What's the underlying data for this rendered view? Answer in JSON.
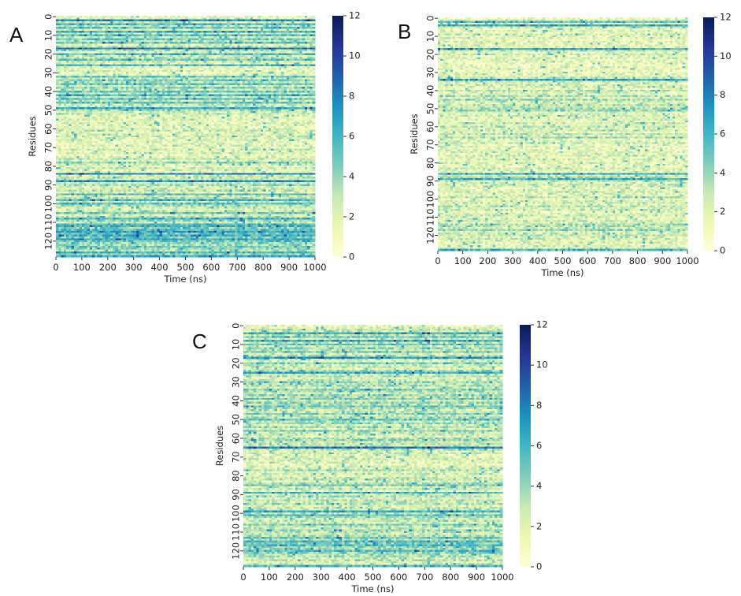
{
  "chart_data": [
    {
      "type": "heatmap",
      "panel_label": "A",
      "xlabel": "Time (ns)",
      "ylabel": "Residues",
      "x_ticks": [
        0,
        100,
        200,
        300,
        400,
        500,
        600,
        700,
        800,
        900,
        1000
      ],
      "y_ticks": [
        0,
        10,
        20,
        30,
        40,
        50,
        60,
        70,
        80,
        90,
        100,
        110,
        120
      ],
      "xlim": [
        0,
        1000
      ],
      "ylim": [
        0,
        129
      ],
      "colorbar": {
        "min": 0,
        "max": 12,
        "ticks": [
          0,
          2,
          4,
          6,
          8,
          10,
          12
        ]
      },
      "colormap": [
        "#ffffd9",
        "#edf8b1",
        "#c7e9b4",
        "#7fcdbb",
        "#41b6c4",
        "#1d91c0",
        "#225ea8",
        "#253494",
        "#081d58"
      ],
      "residue_levels": [
        1.5,
        2.0,
        7.5,
        2.5,
        5.5,
        3.0,
        5.0,
        2.0,
        6.0,
        3.0,
        5.5,
        2.5,
        4.5,
        3.0,
        5.0,
        2.0,
        3.0,
        8.0,
        3.5,
        2.0,
        5.5,
        2.5,
        3.0,
        5.0,
        2.5,
        2.0,
        5.5,
        2.0,
        1.5,
        2.0,
        1.5,
        2.0,
        5.0,
        2.5,
        4.5,
        3.0,
        5.0,
        2.5,
        4.0,
        3.0,
        5.0,
        2.5,
        6.0,
        3.0,
        5.5,
        3.0,
        5.0,
        2.5,
        3.0,
        6.5,
        3.5,
        2.5,
        2.5,
        2.0,
        1.8,
        2.0,
        1.5,
        2.0,
        1.8,
        1.5,
        2.0,
        2.5,
        1.8,
        2.0,
        2.5,
        1.8,
        2.0,
        1.8,
        1.5,
        2.0,
        1.5,
        2.5,
        1.8,
        2.0,
        1.5,
        1.8,
        3.0,
        2.0,
        4.0,
        2.5,
        1.8,
        2.5,
        2.0,
        1.5,
        8.0,
        2.5,
        3.0,
        2.0,
        7.5,
        2.5,
        3.5,
        2.0,
        2.5,
        3.0,
        2.0,
        5.5,
        2.5,
        3.0,
        6.0,
        2.5,
        5.5,
        3.5,
        2.5,
        2.0,
        2.5,
        5.0,
        2.0,
        3.0,
        6.0,
        4.0,
        2.5,
        5.5,
        6.0,
        4.5,
        5.5,
        6.5,
        5.0,
        6.0,
        4.5,
        6.5,
        5.0,
        4.0,
        3.5,
        5.0,
        4.0,
        3.0,
        6.0,
        3.5,
        6.5
      ]
    },
    {
      "type": "heatmap",
      "panel_label": "B",
      "xlabel": "Time (ns)",
      "ylabel": "Residues",
      "x_ticks": [
        0,
        100,
        200,
        300,
        400,
        500,
        600,
        700,
        800,
        900,
        1000
      ],
      "y_ticks": [
        0,
        10,
        20,
        30,
        40,
        50,
        60,
        70,
        80,
        90,
        100,
        110,
        120
      ],
      "xlim": [
        0,
        1000
      ],
      "ylim": [
        0,
        129
      ],
      "colorbar": {
        "min": 0,
        "max": 12,
        "ticks": [
          0,
          2,
          4,
          6,
          8,
          10,
          12
        ]
      },
      "colormap": [
        "#ffffd9",
        "#edf8b1",
        "#c7e9b4",
        "#7fcdbb",
        "#41b6c4",
        "#1d91c0",
        "#225ea8",
        "#253494",
        "#081d58"
      ],
      "residue_levels": [
        1.0,
        2.0,
        5.5,
        2.0,
        6.5,
        2.5,
        1.5,
        2.0,
        1.5,
        2.5,
        1.5,
        1.8,
        1.2,
        2.0,
        1.5,
        2.0,
        1.8,
        6.0,
        2.5,
        1.8,
        2.5,
        1.5,
        2.0,
        1.5,
        1.8,
        1.5,
        1.2,
        1.5,
        1.8,
        1.2,
        1.5,
        2.0,
        1.5,
        3.0,
        6.5,
        2.5,
        1.8,
        2.5,
        2.0,
        1.5,
        3.0,
        2.0,
        1.5,
        3.5,
        2.0,
        4.0,
        2.5,
        2.0,
        3.0,
        2.5,
        3.5,
        4.0,
        2.0,
        1.8,
        2.5,
        1.8,
        2.0,
        1.5,
        2.5,
        1.8,
        3.0,
        2.0,
        2.5,
        1.5,
        3.0,
        2.0,
        3.5,
        1.8,
        2.0,
        2.5,
        1.5,
        2.0,
        1.5,
        1.8,
        2.0,
        1.5,
        2.5,
        1.8,
        2.0,
        1.5,
        2.0,
        1.8,
        1.5,
        2.5,
        2.0,
        1.5,
        6.5,
        2.5,
        3.5,
        6.0,
        2.5,
        1.8,
        2.5,
        2.0,
        1.5,
        2.0,
        2.5,
        1.8,
        2.0,
        3.0,
        1.5,
        2.0,
        2.5,
        1.8,
        3.0,
        2.0,
        2.5,
        1.5,
        2.0,
        2.5,
        2.0,
        1.8,
        2.5,
        2.0,
        3.5,
        3.0,
        2.5,
        4.0,
        2.0,
        2.5,
        3.0,
        2.0,
        2.5,
        1.8,
        2.0,
        1.5,
        2.0,
        1.8,
        6.0
      ]
    },
    {
      "type": "heatmap",
      "panel_label": "C",
      "xlabel": "Time (ns)",
      "ylabel": "Residues",
      "x_ticks": [
        0,
        100,
        200,
        300,
        400,
        500,
        600,
        700,
        800,
        900,
        1000
      ],
      "y_ticks": [
        0,
        10,
        20,
        30,
        40,
        50,
        60,
        70,
        80,
        90,
        100,
        110,
        120
      ],
      "xlim": [
        0,
        1000
      ],
      "ylim": [
        0,
        129
      ],
      "colorbar": {
        "min": 0,
        "max": 12,
        "ticks": [
          0,
          2,
          4,
          6,
          8,
          10,
          12
        ]
      },
      "colormap": [
        "#ffffd9",
        "#edf8b1",
        "#c7e9b4",
        "#7fcdbb",
        "#41b6c4",
        "#1d91c0",
        "#225ea8",
        "#253494",
        "#081d58"
      ],
      "residue_levels": [
        1.5,
        2.0,
        3.0,
        2.5,
        6.5,
        3.0,
        5.0,
        2.5,
        6.5,
        3.0,
        5.0,
        2.5,
        4.0,
        3.0,
        4.5,
        2.0,
        3.0,
        7.0,
        3.0,
        2.0,
        4.5,
        2.5,
        3.0,
        2.0,
        3.5,
        6.5,
        2.5,
        3.0,
        2.0,
        2.5,
        4.0,
        3.0,
        3.5,
        2.5,
        4.5,
        3.5,
        2.5,
        4.0,
        3.0,
        4.5,
        2.5,
        4.0,
        3.0,
        5.0,
        3.5,
        2.5,
        3.0,
        4.5,
        2.5,
        3.5,
        5.0,
        3.0,
        4.0,
        2.5,
        3.5,
        2.0,
        4.5,
        3.0,
        2.5,
        2.0,
        3.5,
        4.0,
        2.5,
        3.0,
        2.5,
        8.0,
        3.0,
        2.0,
        2.5,
        1.8,
        2.0,
        2.5,
        1.8,
        2.0,
        1.5,
        2.0,
        2.5,
        3.5,
        2.0,
        2.5,
        1.8,
        2.5,
        3.0,
        2.0,
        3.5,
        5.0,
        2.5,
        3.0,
        2.0,
        6.0,
        2.5,
        3.0,
        2.0,
        3.0,
        2.5,
        3.5,
        2.0,
        2.5,
        3.0,
        6.5,
        3.0,
        5.5,
        3.5,
        2.5,
        3.0,
        2.5,
        4.5,
        3.0,
        2.5,
        4.0,
        3.0,
        2.5,
        3.5,
        5.0,
        3.0,
        5.5,
        4.5,
        5.5,
        4.0,
        3.5,
        5.5,
        4.0,
        3.0,
        3.5,
        2.5,
        3.0,
        2.0,
        2.5,
        6.0
      ]
    }
  ]
}
